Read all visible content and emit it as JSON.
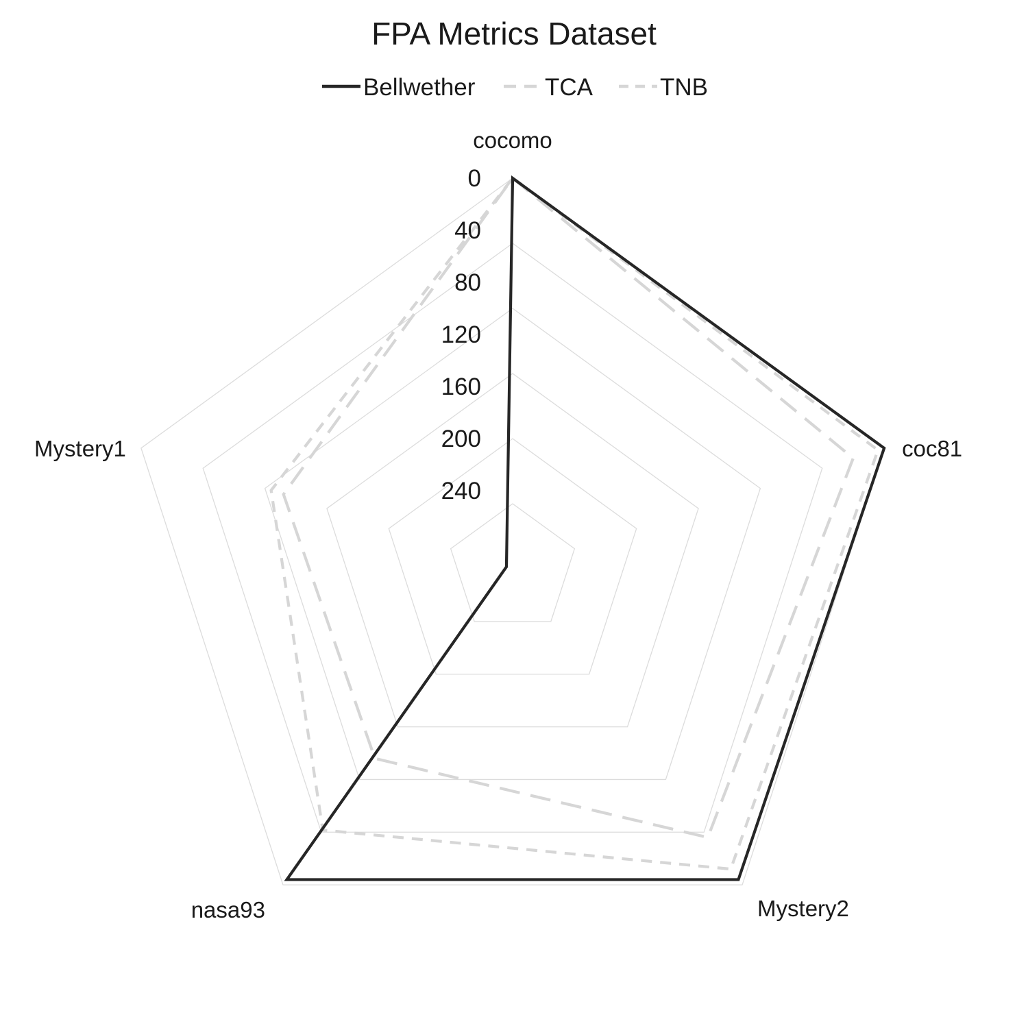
{
  "chart_data": {
    "type": "radar",
    "title": "FPA Metrics Dataset",
    "categories": [
      "cocomo",
      "coc81",
      "Mystery2",
      "nasa93",
      "Mystery1"
    ],
    "r_ticks": [
      "0",
      "40",
      "80",
      "120",
      "160",
      "200",
      "240"
    ],
    "r_axis": "inverted",
    "rlim": [
      0,
      300
    ],
    "legend_position": "top-center",
    "grid": true,
    "series": [
      {
        "name": "Bellwether",
        "style": "solid",
        "color": "#262626",
        "values": [
          0,
          0,
          5,
          5,
          295
        ]
      },
      {
        "name": "TCA",
        "style": "long-dash",
        "color": "#d6d6d6",
        "values": [
          0,
          25,
          45,
          120,
          115
        ]
      },
      {
        "name": "TNB",
        "style": "short-dash",
        "color": "#d6d6d6",
        "values": [
          0,
          5,
          15,
          52,
          105
        ]
      }
    ]
  }
}
